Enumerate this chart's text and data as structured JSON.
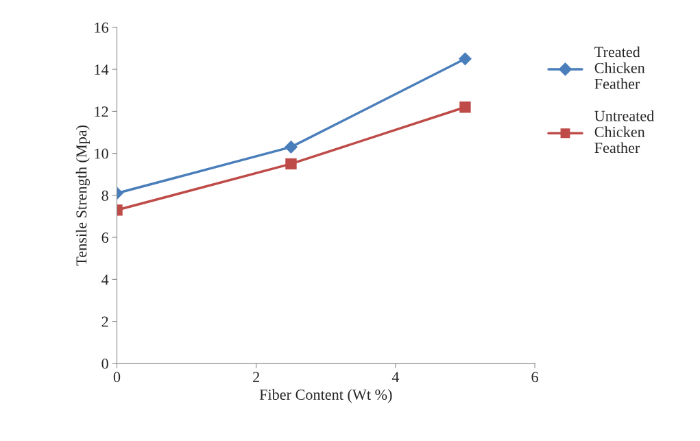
{
  "chart_data": {
    "type": "line",
    "xlabel": "Fiber Content (Wt %)",
    "ylabel": "Tensile Strength (Mpa)",
    "x": [
      0,
      2.5,
      5
    ],
    "series": [
      {
        "name": "Treated Chicken Feather",
        "color": "#4a7ebb",
        "marker": "diamond",
        "values": [
          8.1,
          10.3,
          14.5
        ]
      },
      {
        "name": "Untreated Chicken Feather",
        "color": "#be4b48",
        "marker": "square",
        "values": [
          7.3,
          9.5,
          12.2
        ]
      }
    ],
    "xlim": [
      0,
      6
    ],
    "xticks": [
      0,
      2,
      4,
      6
    ],
    "ylim": [
      0,
      16
    ],
    "yticks": [
      0,
      2,
      4,
      6,
      8,
      10,
      12,
      14,
      16
    ],
    "grid": false,
    "legend": "right"
  }
}
